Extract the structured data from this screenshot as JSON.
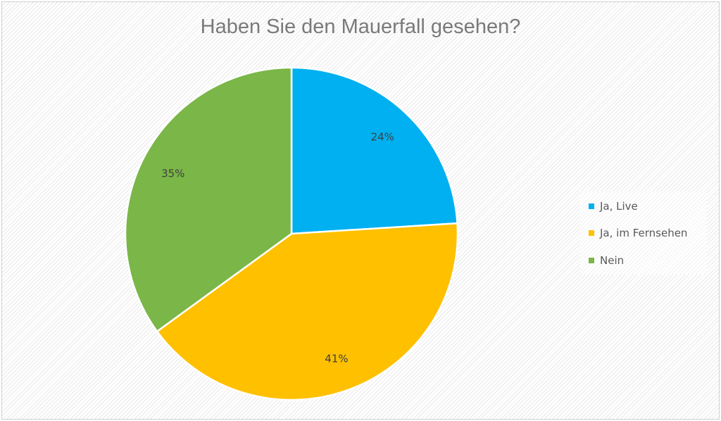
{
  "chart_data": {
    "type": "pie",
    "title": "Haben Sie den Mauerfall gesehen?",
    "categories": [
      "Ja, Live",
      "Ja, im Fernsehen",
      "Nein"
    ],
    "values": [
      24,
      41,
      35
    ],
    "data_labels": [
      "24%",
      "41%",
      "35%"
    ],
    "colors": [
      "#00b0f0",
      "#ffc000",
      "#7ab648"
    ],
    "legend_position": "right"
  }
}
